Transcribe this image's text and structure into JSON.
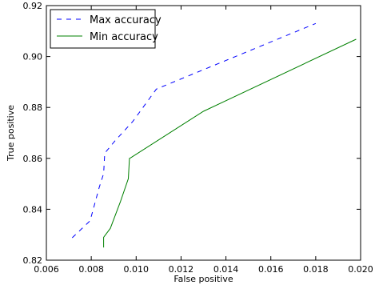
{
  "chart_data": {
    "type": "line",
    "xlabel": "False positive",
    "ylabel": "True positive",
    "xlim": [
      0.006,
      0.02
    ],
    "ylim": [
      0.82,
      0.92
    ],
    "x_ticks": [
      0.006,
      0.008,
      0.01,
      0.012,
      0.014,
      0.016,
      0.018,
      0.02
    ],
    "x_tick_labels": [
      "0.006",
      "0.008",
      "0.010",
      "0.012",
      "0.014",
      "0.016",
      "0.018",
      "0.020"
    ],
    "y_ticks": [
      0.82,
      0.84,
      0.86,
      0.88,
      0.9,
      0.92
    ],
    "y_tick_labels": [
      "0.82",
      "0.84",
      "0.86",
      "0.88",
      "0.90",
      "0.92"
    ],
    "grid": false,
    "legend_position": "top-left",
    "series": [
      {
        "name": "Max accuracy",
        "color": "#0000ff",
        "dash": "dashed",
        "x": [
          0.00715,
          0.00795,
          0.00835,
          0.00855,
          0.0086,
          0.00905,
          0.00985,
          0.0109,
          0.018
        ],
        "y": [
          0.8288,
          0.8355,
          0.8485,
          0.854,
          0.862,
          0.8668,
          0.8745,
          0.8872,
          0.913
        ]
      },
      {
        "name": "Min accuracy",
        "color": "#008000",
        "dash": "solid",
        "x": [
          0.00855,
          0.00855,
          0.00885,
          0.0093,
          0.00965,
          0.0097,
          0.00975,
          0.013,
          0.0198
        ],
        "y": [
          0.825,
          0.829,
          0.8325,
          0.843,
          0.852,
          0.86,
          0.8602,
          0.8785,
          0.9068
        ]
      }
    ]
  }
}
